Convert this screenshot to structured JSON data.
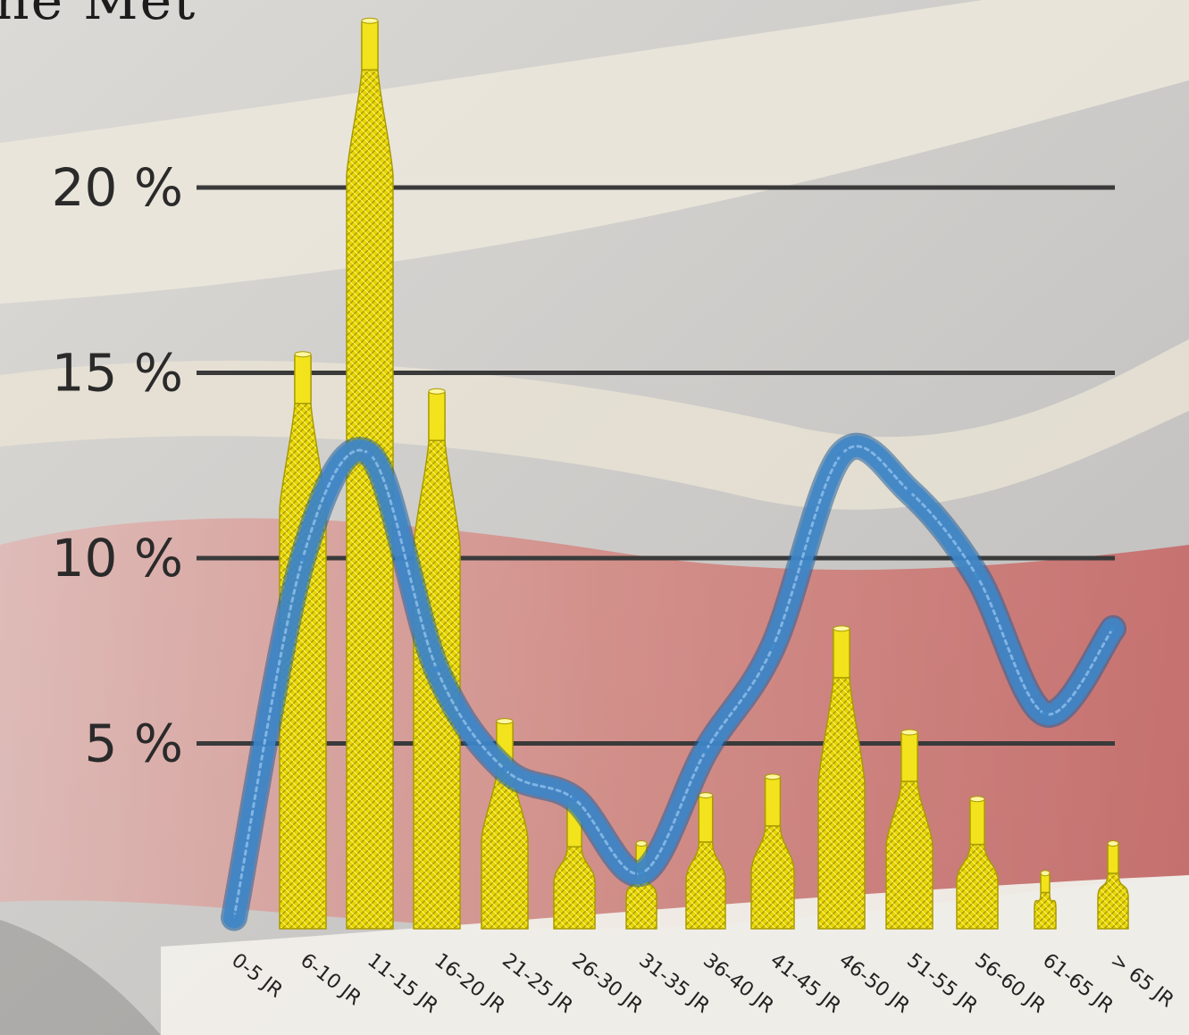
{
  "title_fragment": "ne Met",
  "colors": {
    "bar_fill": "#e6d500",
    "bar_tip": "#f2e31c",
    "bar_edge": "#a89b00",
    "line": "#3f86c8",
    "gridline": "#3a3a3a",
    "background_red": "#c8302e",
    "background_grey": "#cfcfcf",
    "background_cream": "#ece7d8"
  },
  "chart_data": {
    "type": "bar",
    "title": "",
    "xlabel": "",
    "ylabel": "",
    "ylim": [
      0,
      25
    ],
    "yticks": [
      5,
      10,
      15,
      20
    ],
    "ytick_labels": [
      "5 %",
      "10 %",
      "15 %",
      "20 %"
    ],
    "grid": true,
    "categories": [
      "0-5 JR",
      "6-10 JR",
      "11-15 JR",
      "16-20 JR",
      "21-25 JR",
      "26-30 JR",
      "31-35 JR",
      "36-40 JR",
      "41-45 JR",
      "46-50 JR",
      "51-55 JR",
      "56-60 JR",
      "61-65 JR",
      "> 65 JR"
    ],
    "series": [
      {
        "type": "bar",
        "values": [
          0,
          15.5,
          24.5,
          14.5,
          5.6,
          3.4,
          2.3,
          3.6,
          4.1,
          8.1,
          5.3,
          3.5,
          1.5,
          2.3
        ]
      },
      {
        "type": "line",
        "values": [
          0.3,
          10.0,
          12.8,
          7.0,
          4.3,
          3.5,
          1.5,
          4.8,
          7.6,
          12.8,
          11.8,
          9.5,
          5.8,
          8.1
        ]
      }
    ]
  }
}
